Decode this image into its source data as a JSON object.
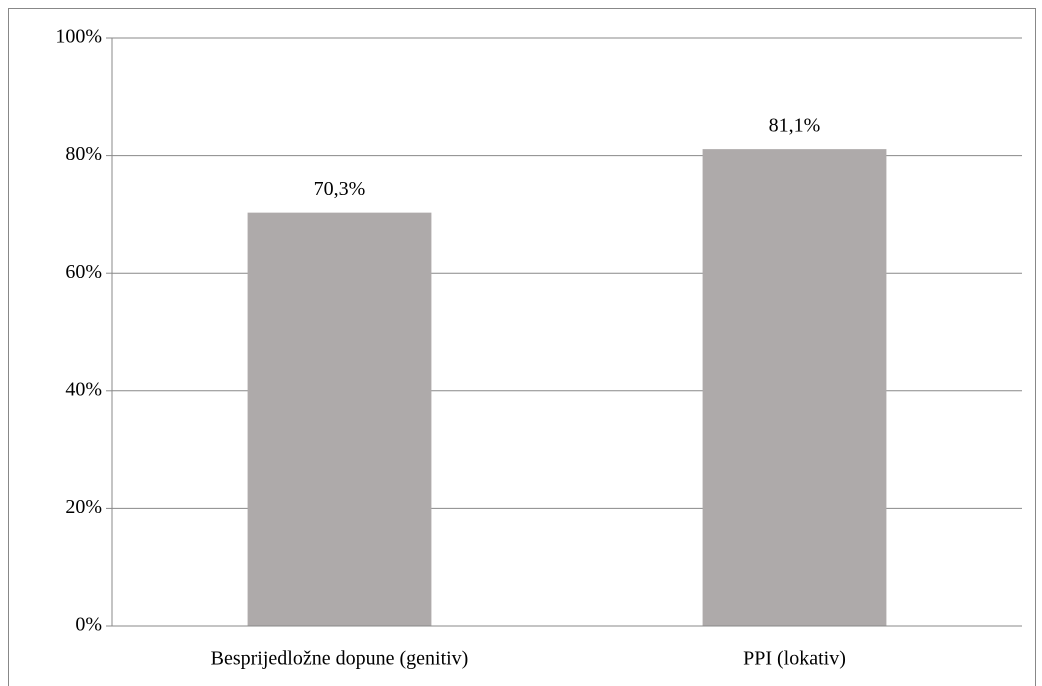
{
  "chart_data": {
    "type": "bar",
    "categories": [
      "Besprijedložne dopune (genitiv)",
      "PPI (lokativ)"
    ],
    "values": [
      70.3,
      81.1
    ],
    "value_labels": [
      "70,3%",
      "81,1%"
    ],
    "color": "#aeaaaa",
    "ylim": [
      0,
      100
    ],
    "yticks": [
      {
        "value": 0,
        "label": "0%"
      },
      {
        "value": 20,
        "label": "20%"
      },
      {
        "value": 40,
        "label": "40%"
      },
      {
        "value": 60,
        "label": "60%"
      },
      {
        "value": 80,
        "label": "80%"
      },
      {
        "value": 100,
        "label": "100%"
      }
    ],
    "grid": true
  }
}
